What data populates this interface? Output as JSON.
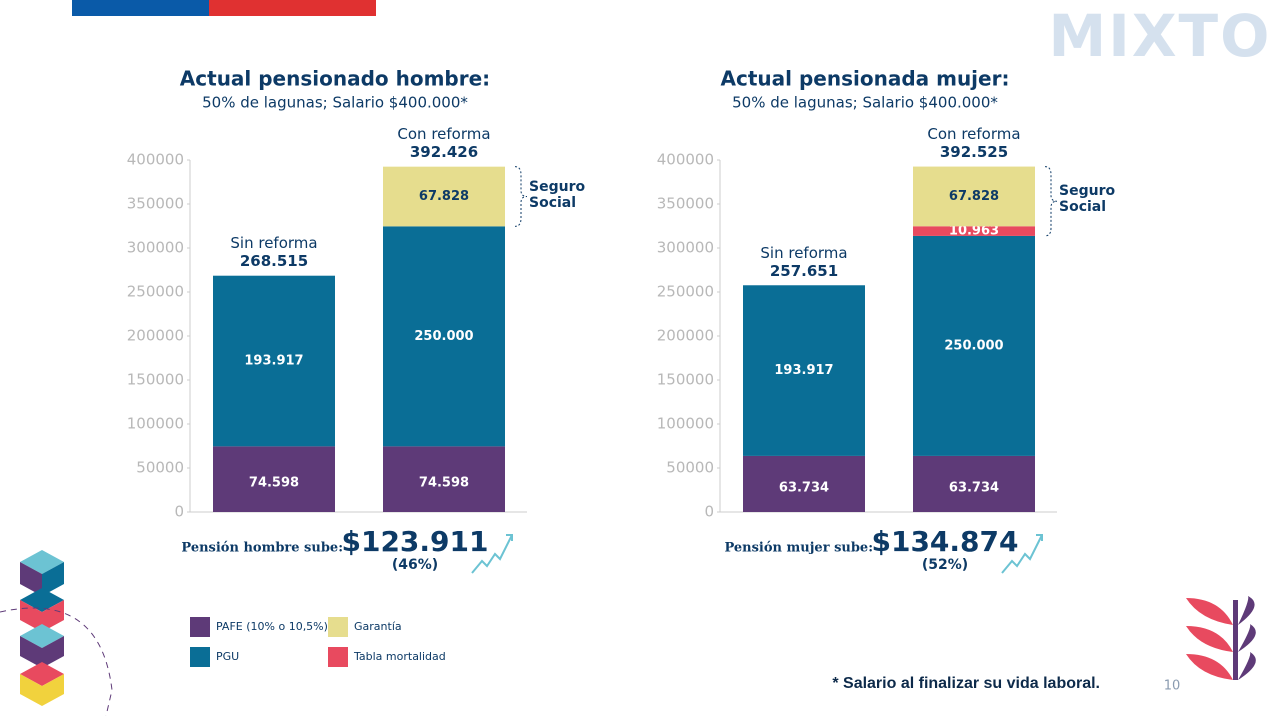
{
  "logo": "MIXTO",
  "page_number": "10",
  "footnote": "* Salario al finalizar su vida laboral.",
  "chart_data": [
    {
      "type": "stacked-bar",
      "title": "Actual pensionado hombre:",
      "subtitle": "50% de lagunas; Salario $400.000*",
      "categories": [
        "Sin reforma",
        "Con reforma"
      ],
      "series": [
        {
          "name": "PAFE (10% o 10,5%)",
          "color": "#5e3a78",
          "values": [
            74598,
            74598
          ],
          "value_labels": [
            "74.598",
            "74.598"
          ]
        },
        {
          "name": "PGU",
          "color": "#0a6e96",
          "values": [
            193917,
            250000
          ],
          "value_labels": [
            "193.917",
            "250.000"
          ]
        },
        {
          "name": "Tabla mortalidad",
          "color": "#e84a5f",
          "values": [
            null,
            null
          ],
          "value_labels": [
            null,
            null
          ]
        },
        {
          "name": "Garantía",
          "color": "#e6dd8e",
          "values": [
            null,
            67828
          ],
          "value_labels": [
            null,
            "67.828"
          ]
        }
      ],
      "totals": {
        "values": [
          268515,
          392426
        ],
        "value_labels": [
          "268.515",
          "392.426"
        ]
      },
      "bracket_label": "Seguro Social",
      "increase": {
        "label": "Pensión hombre sube:",
        "amount": "$123.911",
        "percent": "(46%)"
      },
      "ylim": [
        0,
        400000
      ],
      "yticks": [
        0,
        50000,
        100000,
        150000,
        200000,
        250000,
        300000,
        350000,
        400000
      ]
    },
    {
      "type": "stacked-bar",
      "title": "Actual pensionada mujer:",
      "subtitle": "50% de lagunas; Salario $400.000*",
      "categories": [
        "Sin reforma",
        "Con reforma"
      ],
      "series": [
        {
          "name": "PAFE (10% o 10,5%)",
          "color": "#5e3a78",
          "values": [
            63734,
            63734
          ],
          "value_labels": [
            "63.734",
            "63.734"
          ]
        },
        {
          "name": "PGU",
          "color": "#0a6e96",
          "values": [
            193917,
            250000
          ],
          "value_labels": [
            "193.917",
            "250.000"
          ]
        },
        {
          "name": "Tabla mortalidad",
          "color": "#e84a5f",
          "values": [
            null,
            10963
          ],
          "value_labels": [
            null,
            "10.963"
          ]
        },
        {
          "name": "Garantía",
          "color": "#e6dd8e",
          "values": [
            null,
            67828
          ],
          "value_labels": [
            null,
            "67.828"
          ]
        }
      ],
      "totals": {
        "values": [
          257651,
          392525
        ],
        "value_labels": [
          "257.651",
          "392.525"
        ]
      },
      "bracket_label": "Seguro Social",
      "increase": {
        "label": "Pensión mujer sube:",
        "amount": "$134.874",
        "percent": "(52%)"
      },
      "ylim": [
        0,
        400000
      ],
      "yticks": [
        0,
        50000,
        100000,
        150000,
        200000,
        250000,
        300000,
        350000,
        400000
      ]
    }
  ]
}
